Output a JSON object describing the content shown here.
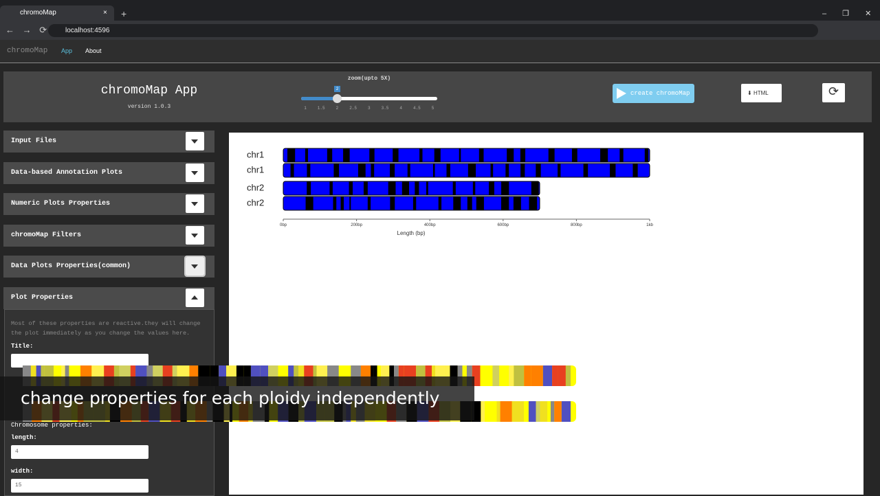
{
  "browser": {
    "tab_title": "chromoMap",
    "url": "localhost:4596"
  },
  "nav": {
    "brand": "chromoMap",
    "links": [
      "App",
      "About"
    ]
  },
  "header": {
    "title": "chromoMap App",
    "version": "version 1.0.3",
    "zoom_label": "zoom(upto 5X)",
    "zoom_value": "2",
    "zoom_ticks": [
      "1",
      "1.5",
      "2",
      "2.5",
      "3",
      "3.5",
      "4",
      "4.5",
      "5"
    ],
    "create_button": "create chromoMap",
    "html_button": "HTML"
  },
  "sidebar": {
    "panels": [
      "Input Files",
      "Data-based Annotation Plots",
      "Numeric Plots Properties",
      "chromoMap Filters",
      "Data Plots Properties(common)",
      "Plot Properties"
    ],
    "description": "Most of these properties are reactive.they will change the plot immediately as you change the values here.",
    "title_label": "Title:",
    "chromosome_label": "Chromosome properties:",
    "length_label": "length:",
    "length_value": "4",
    "width_label": "width:",
    "width_value": "15"
  },
  "plot": {
    "chromosomes": [
      "chr1",
      "chr1",
      "chr2",
      "chr2"
    ],
    "axis_ticks": [
      "0bp",
      "200bp",
      "400bp",
      "600bp",
      "800bp",
      "1kb"
    ],
    "axis_title": "Length (bp)"
  },
  "caption": "change properties for each ploidy independently"
}
